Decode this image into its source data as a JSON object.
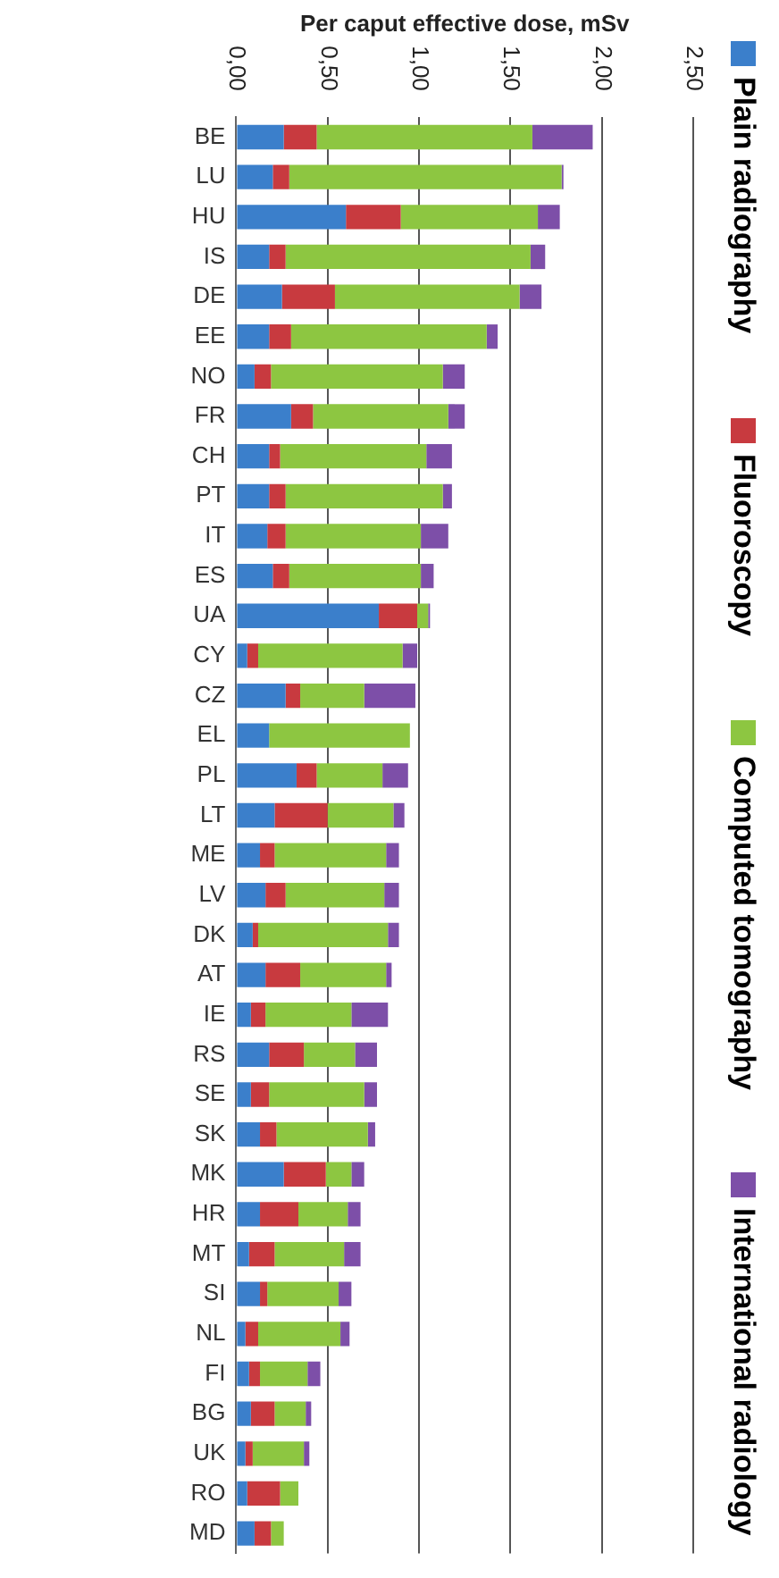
{
  "chart_data": {
    "type": "bar",
    "orientation": "horizontal",
    "stacked": true,
    "xlabel": "Per caput effective dose, mSv",
    "categories": [
      "BE",
      "LU",
      "HU",
      "IS",
      "DE",
      "EE",
      "NO",
      "FR",
      "CH",
      "PT",
      "IT",
      "ES",
      "UA",
      "CY",
      "CZ",
      "EL",
      "PL",
      "LT",
      "ME",
      "LV",
      "DK",
      "AT",
      "IE",
      "RS",
      "SE",
      "SK",
      "MK",
      "HR",
      "MT",
      "SI",
      "NL",
      "FI",
      "BG",
      "UK",
      "RO",
      "MD"
    ],
    "series": [
      {
        "name": "Plain radiography",
        "color": "#3b7fcb",
        "values": [
          0.26,
          0.2,
          0.6,
          0.18,
          0.25,
          0.18,
          0.1,
          0.3,
          0.18,
          0.18,
          0.17,
          0.2,
          0.78,
          0.06,
          0.27,
          0.18,
          0.33,
          0.21,
          0.13,
          0.16,
          0.09,
          0.16,
          0.08,
          0.18,
          0.08,
          0.13,
          0.26,
          0.13,
          0.07,
          0.13,
          0.05,
          0.07,
          0.08,
          0.05,
          0.06,
          0.1
        ]
      },
      {
        "name": "Fluoroscopy",
        "color": "#c83a3f",
        "values": [
          0.18,
          0.09,
          0.3,
          0.09,
          0.29,
          0.12,
          0.09,
          0.12,
          0.06,
          0.09,
          0.1,
          0.09,
          0.21,
          0.06,
          0.08,
          0,
          0.11,
          0.29,
          0.08,
          0.11,
          0.03,
          0.19,
          0.08,
          0.19,
          0.1,
          0.09,
          0.23,
          0.21,
          0.14,
          0.04,
          0.07,
          0.06,
          0.13,
          0.04,
          0.18,
          0.09
        ]
      },
      {
        "name": "Computed tomography",
        "color": "#8dc641",
        "values": [
          1.18,
          1.49,
          0.75,
          1.34,
          1.01,
          1.07,
          0.94,
          0.74,
          0.8,
          0.86,
          0.74,
          0.72,
          0.06,
          0.79,
          0.35,
          0.77,
          0.36,
          0.36,
          0.61,
          0.54,
          0.71,
          0.47,
          0.47,
          0.28,
          0.52,
          0.5,
          0.14,
          0.27,
          0.38,
          0.39,
          0.45,
          0.26,
          0.17,
          0.28,
          0.1,
          0.07
        ]
      },
      {
        "name": "International radiology",
        "color": "#7d4fa8",
        "values": [
          0.33,
          0.01,
          0.12,
          0.08,
          0.12,
          0.06,
          0.12,
          0.09,
          0.14,
          0.05,
          0.15,
          0.07,
          0.01,
          0.08,
          0.28,
          0,
          0.14,
          0.06,
          0.07,
          0.08,
          0.06,
          0.03,
          0.2,
          0.12,
          0.07,
          0.04,
          0.07,
          0.07,
          0.09,
          0.07,
          0.05,
          0.07,
          0.03,
          0.03,
          0,
          0
        ]
      }
    ],
    "xlim": [
      0,
      2.5
    ],
    "xticks": [
      {
        "value": 0,
        "label": "0,00"
      },
      {
        "value": 0.5,
        "label": "0,50"
      },
      {
        "value": 1,
        "label": "1,00"
      },
      {
        "value": 1.5,
        "label": "1,50"
      },
      {
        "value": 2,
        "label": "2,00"
      },
      {
        "value": 2.5,
        "label": "2,50"
      }
    ],
    "grid": "x",
    "legend": "right"
  }
}
